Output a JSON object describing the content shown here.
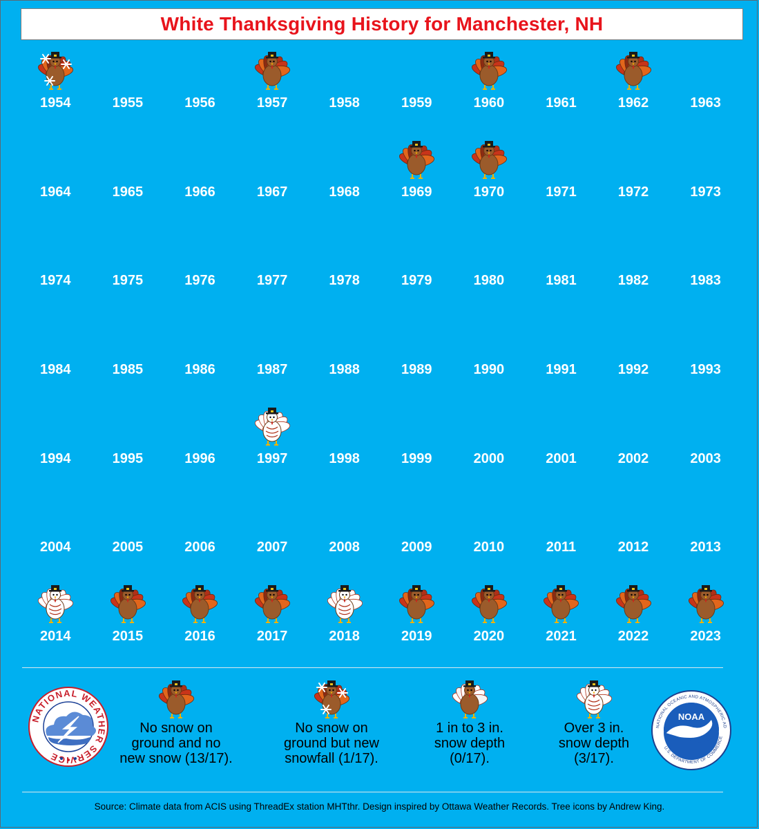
{
  "title": "White Thanksgiving History for Manchester, NH",
  "colors": {
    "background": "#00b0f0",
    "title_text": "#e8141c",
    "year_text": "#ffffff"
  },
  "years": [
    {
      "year": "1954",
      "icon": "turkey-snowfall"
    },
    {
      "year": "1955",
      "icon": ""
    },
    {
      "year": "1956",
      "icon": ""
    },
    {
      "year": "1957",
      "icon": "turkey-brown"
    },
    {
      "year": "1958",
      "icon": ""
    },
    {
      "year": "1959",
      "icon": ""
    },
    {
      "year": "1960",
      "icon": "turkey-brown"
    },
    {
      "year": "1961",
      "icon": ""
    },
    {
      "year": "1962",
      "icon": "turkey-brown"
    },
    {
      "year": "1963",
      "icon": ""
    },
    {
      "year": "1964",
      "icon": ""
    },
    {
      "year": "1965",
      "icon": ""
    },
    {
      "year": "1966",
      "icon": ""
    },
    {
      "year": "1967",
      "icon": ""
    },
    {
      "year": "1968",
      "icon": ""
    },
    {
      "year": "1969",
      "icon": "turkey-brown"
    },
    {
      "year": "1970",
      "icon": "turkey-brown"
    },
    {
      "year": "1971",
      "icon": ""
    },
    {
      "year": "1972",
      "icon": ""
    },
    {
      "year": "1973",
      "icon": ""
    },
    {
      "year": "1974",
      "icon": ""
    },
    {
      "year": "1975",
      "icon": ""
    },
    {
      "year": "1976",
      "icon": ""
    },
    {
      "year": "1977",
      "icon": ""
    },
    {
      "year": "1978",
      "icon": ""
    },
    {
      "year": "1979",
      "icon": ""
    },
    {
      "year": "1980",
      "icon": ""
    },
    {
      "year": "1981",
      "icon": ""
    },
    {
      "year": "1982",
      "icon": ""
    },
    {
      "year": "1983",
      "icon": ""
    },
    {
      "year": "1984",
      "icon": ""
    },
    {
      "year": "1985",
      "icon": ""
    },
    {
      "year": "1986",
      "icon": ""
    },
    {
      "year": "1987",
      "icon": ""
    },
    {
      "year": "1988",
      "icon": ""
    },
    {
      "year": "1989",
      "icon": ""
    },
    {
      "year": "1990",
      "icon": ""
    },
    {
      "year": "1991",
      "icon": ""
    },
    {
      "year": "1992",
      "icon": ""
    },
    {
      "year": "1993",
      "icon": ""
    },
    {
      "year": "1994",
      "icon": ""
    },
    {
      "year": "1995",
      "icon": ""
    },
    {
      "year": "1996",
      "icon": ""
    },
    {
      "year": "1997",
      "icon": "turkey-white"
    },
    {
      "year": "1998",
      "icon": ""
    },
    {
      "year": "1999",
      "icon": ""
    },
    {
      "year": "2000",
      "icon": ""
    },
    {
      "year": "2001",
      "icon": ""
    },
    {
      "year": "2002",
      "icon": ""
    },
    {
      "year": "2003",
      "icon": ""
    },
    {
      "year": "2004",
      "icon": ""
    },
    {
      "year": "2005",
      "icon": ""
    },
    {
      "year": "2006",
      "icon": ""
    },
    {
      "year": "2007",
      "icon": ""
    },
    {
      "year": "2008",
      "icon": ""
    },
    {
      "year": "2009",
      "icon": ""
    },
    {
      "year": "2010",
      "icon": ""
    },
    {
      "year": "2011",
      "icon": ""
    },
    {
      "year": "2012",
      "icon": ""
    },
    {
      "year": "2013",
      "icon": ""
    },
    {
      "year": "2014",
      "icon": "turkey-white"
    },
    {
      "year": "2015",
      "icon": "turkey-brown"
    },
    {
      "year": "2016",
      "icon": "turkey-brown"
    },
    {
      "year": "2017",
      "icon": "turkey-brown"
    },
    {
      "year": "2018",
      "icon": "turkey-white"
    },
    {
      "year": "2019",
      "icon": "turkey-brown"
    },
    {
      "year": "2020",
      "icon": "turkey-brown"
    },
    {
      "year": "2021",
      "icon": "turkey-brown"
    },
    {
      "year": "2022",
      "icon": "turkey-brown"
    },
    {
      "year": "2023",
      "icon": "turkey-brown"
    }
  ],
  "legend": [
    {
      "icon": "turkey-brown",
      "line1": "No snow on",
      "line2": "ground and no",
      "line3": "new snow (13/17)."
    },
    {
      "icon": "turkey-snowfall",
      "line1": "No snow on",
      "line2": "ground but new",
      "line3": "snowfall (1/17)."
    },
    {
      "icon": "turkey-light",
      "line1": "1 in to 3 in.",
      "line2": "snow depth",
      "line3": "(0/17)."
    },
    {
      "icon": "turkey-white",
      "line1": "Over 3 in.",
      "line2": "snow depth",
      "line3": "(3/17)."
    }
  ],
  "logos": {
    "nws_text": "NATIONAL WEATHER SERVICE",
    "noaa_center": "NOAA",
    "noaa_ring": "NATIONAL OCEANIC AND ATMOSPHERIC ADMINISTRATION",
    "noaa_ring_bottom": "U.S. DEPARTMENT OF COMMERCE"
  },
  "source": "Source: Climate data from ACIS using ThreadEx station MHTthr. Design inspired by Ottawa Weather Records. Tree icons by Andrew King."
}
